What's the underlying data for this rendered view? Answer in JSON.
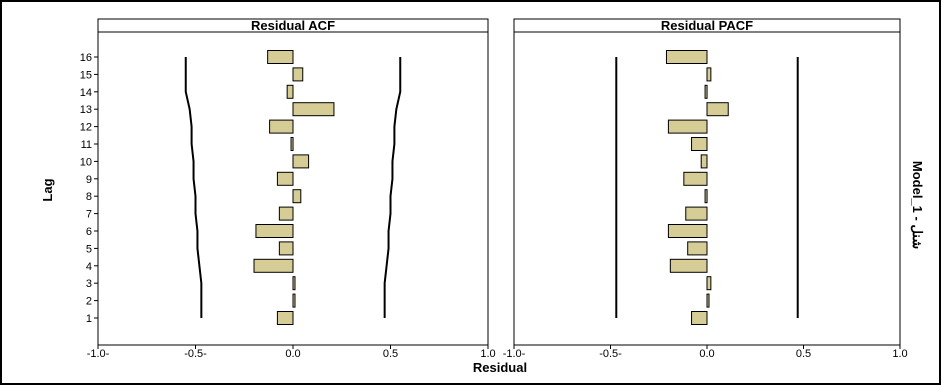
{
  "chart_data": [
    {
      "type": "bar",
      "orientation": "horizontal",
      "title": "Residual ACF",
      "categories": [
        1,
        2,
        3,
        4,
        5,
        6,
        7,
        8,
        9,
        10,
        11,
        12,
        13,
        14,
        15,
        16
      ],
      "values": [
        -0.08,
        0.01,
        0.01,
        -0.2,
        -0.07,
        -0.19,
        -0.07,
        0.04,
        -0.08,
        0.08,
        -0.01,
        -0.12,
        0.21,
        -0.03,
        0.05,
        -0.13
      ],
      "confidence_limits": {
        "upper": [
          0.47,
          0.47,
          0.47,
          0.48,
          0.49,
          0.49,
          0.5,
          0.5,
          0.51,
          0.51,
          0.52,
          0.52,
          0.53,
          0.55,
          0.55,
          0.55
        ],
        "lower": [
          -0.47,
          -0.47,
          -0.47,
          -0.48,
          -0.49,
          -0.49,
          -0.5,
          -0.5,
          -0.51,
          -0.51,
          -0.52,
          -0.52,
          -0.53,
          -0.55,
          -0.55,
          -0.55
        ]
      },
      "xlim": [
        -1.0,
        1.0
      ],
      "bar_color": "#d6cd96"
    },
    {
      "type": "bar",
      "orientation": "horizontal",
      "title": "Residual PACF",
      "categories": [
        1,
        2,
        3,
        4,
        5,
        6,
        7,
        8,
        9,
        10,
        11,
        12,
        13,
        14,
        15,
        16
      ],
      "values": [
        -0.08,
        0.01,
        0.02,
        -0.19,
        -0.1,
        -0.2,
        -0.11,
        -0.01,
        -0.12,
        -0.03,
        -0.08,
        -0.2,
        0.11,
        -0.01,
        0.02,
        -0.21
      ],
      "confidence_limits": {
        "upper": 0.47,
        "lower": -0.47
      },
      "xlim": [
        -1.0,
        1.0
      ],
      "bar_color": "#d6cd96"
    }
  ],
  "x_ticks": [
    "-1.0-",
    "-0.5-",
    "0.0",
    "0.5",
    "1.0"
  ],
  "y_ticks": [
    "1",
    "2",
    "3",
    "4",
    "5",
    "6",
    "7",
    "8",
    "9",
    "10",
    "11",
    "12",
    "13",
    "14",
    "15",
    "16"
  ],
  "xlabel": "Residual",
  "ylabel": "Lag",
  "facet_label": "Model_1 - شنل"
}
